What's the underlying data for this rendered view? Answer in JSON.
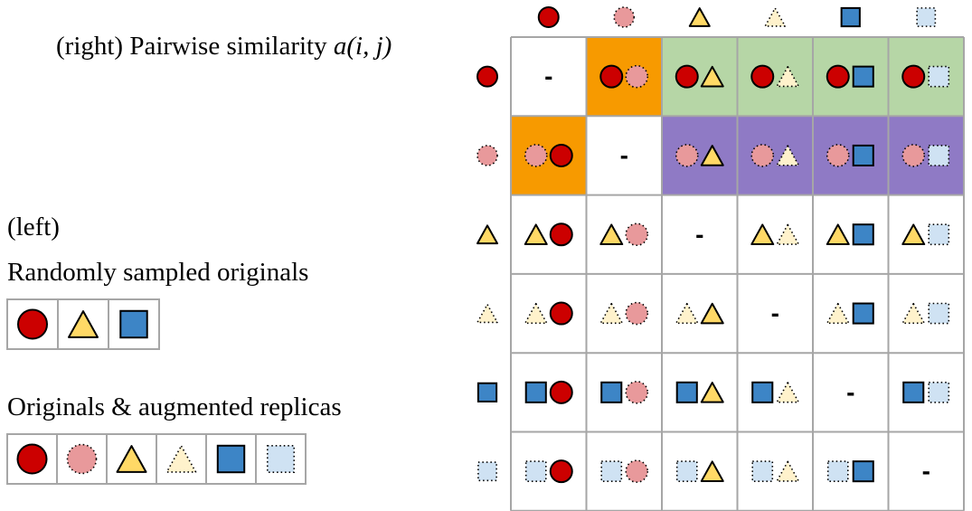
{
  "title": {
    "prefix": "(right) Pairwise similarity ",
    "formula": "a(i, j)"
  },
  "left_section": {
    "label": "(left)",
    "sampled_label": "Randomly sampled originals",
    "sampled_items": [
      "circle",
      "triangle",
      "square"
    ],
    "augmented_label": "Originals & augmented replicas",
    "augmented_items": [
      "circle",
      "circle-aug",
      "triangle",
      "triangle-aug",
      "square",
      "square-aug"
    ]
  },
  "matrix": {
    "items": [
      "circle",
      "circle-aug",
      "triangle",
      "triangle-aug",
      "square",
      "square-aug"
    ],
    "diagonal_symbol": "-",
    "highlight_cells": [
      {
        "row": 0,
        "col": 1,
        "color": "#f79a00"
      },
      {
        "row": 1,
        "col": 0,
        "color": "#f79a00"
      },
      {
        "row": 0,
        "col": 2,
        "color": "#b6d6a6"
      },
      {
        "row": 0,
        "col": 3,
        "color": "#b6d6a6"
      },
      {
        "row": 0,
        "col": 4,
        "color": "#b6d6a6"
      },
      {
        "row": 0,
        "col": 5,
        "color": "#b6d6a6"
      },
      {
        "row": 1,
        "col": 2,
        "color": "#8f7ac5"
      },
      {
        "row": 1,
        "col": 3,
        "color": "#8f7ac5"
      },
      {
        "row": 1,
        "col": 4,
        "color": "#8f7ac5"
      },
      {
        "row": 1,
        "col": 5,
        "color": "#8f7ac5"
      }
    ]
  },
  "shape_colors": {
    "circle": "#cc0000",
    "circle-aug": "#e8999b",
    "triangle": "#ffd966",
    "triangle-aug": "#fff2cc",
    "square": "#3d85c6",
    "square-aug": "#cfe2f3",
    "grid": "#a6a6a6"
  }
}
